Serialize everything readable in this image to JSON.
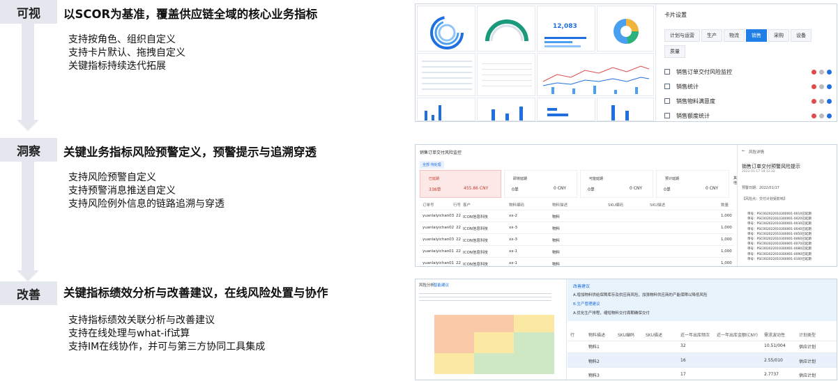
{
  "stages": [
    {
      "tag": "可视",
      "title": "以SCOR为基准，覆盖供应链全域的核心业务指标",
      "bullets": [
        "支持按角色、组织自定义",
        "支持卡片默认、拖拽自定义",
        "关键指标持续迭代拓展"
      ]
    },
    {
      "tag": "洞察",
      "title": "关键业务指标风险预警定义，预警提示与追溯穿透",
      "bullets": [
        "支持风险预警自定义",
        "支持预警消息推送自定义",
        "支持风险例外信息的链路追溯与穿透"
      ]
    },
    {
      "tag": "改善",
      "title": "关键指标绩效分析与改善建议，在线风险处置与协作",
      "bullets": [
        "支持指标绩效关联分析与改善建议",
        "支持在线处理与what-if试算",
        "支持IM在线协作，并可与第三方协同工具集成"
      ]
    }
  ],
  "shot1": {
    "settings_title": "卡片设置",
    "chips": [
      "计划与运营",
      "生产",
      "物流",
      "销售",
      "采购",
      "设备",
      "质量"
    ],
    "active_chip": "销售",
    "rows": [
      "销售订单交付风险监控",
      "销售统计",
      "销售物料满意度",
      "销售额度统计"
    ],
    "big_number": "12,083"
  },
  "shot2": {
    "header": "销售订单交付风险监控",
    "tab": "全部  待处理",
    "metrics": [
      {
        "label": "已延期",
        "count": "338单",
        "amount": "455.86 CNY"
      },
      {
        "label": "即将延期",
        "count": "0单",
        "amount": "0 CNY"
      },
      {
        "label": "可能延期",
        "count": "0单",
        "amount": "0 CNY"
      },
      {
        "label": "预计延期",
        "count": "0单",
        "amount": "0 CNY"
      },
      {
        "label": "其他",
        "count": "",
        "amount": ""
      }
    ],
    "columns": [
      "订单号",
      "行号",
      "客户",
      "物料编码",
      "物料描述",
      "SKU编码",
      "SKU描述",
      "数量"
    ],
    "rows": [
      [
        "yuanlaiyichan03",
        "22",
        "ICON信息科技",
        "xx-2",
        "物料",
        "1,000"
      ],
      [
        "yuanlaiyichan02",
        "22",
        "ICON信息科技",
        "xx-3",
        "物料",
        "1,000"
      ],
      [
        "yuanlaiyichan03",
        "22",
        "ICON信息科技",
        "xx-3",
        "物料",
        "1,000"
      ],
      [
        "yuanlaiyichan01",
        "22",
        "ICON信息科技",
        "xx-1",
        "物料",
        "1,000"
      ],
      [
        "yuanlaiyichan01",
        "22",
        "ICON信息科技",
        "xx-1",
        "物料",
        "1,000"
      ]
    ],
    "detail_header": "风险详情",
    "detail_title": "销售订单交付预警风险提示",
    "detail_date": "2022-01-17 18:12:22",
    "detail_line": "预警日期：2022/01/17",
    "detail_sub": "【风险点：交付计划受影响】",
    "detail_list": [
      "单号：PSC002022010300001-0010已延期",
      "单号：PSC002022010300001-0020已延期",
      "单号：PSC002022010300001-0030已延期",
      "单号：PSC002022010300001-0040已延期",
      "单号：PSC002022010300001-0050已延期",
      "单号：PSC002022010300001-0060已延期",
      "单号：PSC002022010300001-0070已延期",
      "单号：PSC002022010300001-0080已延期",
      "单号：PSC002022010300001-0090已延期",
      "单号：PSC002022010300001-0100已延期"
    ]
  },
  "shot3": {
    "tabs": [
      "风险分析",
      "智能建议"
    ],
    "advice_title": "改善建议",
    "advice_1": "A.增加物料供给保障库存及供应商风险，加强物料供应商的产能保障以降低风险",
    "advice_sub": "B.生产管理建议",
    "advice_2": "A.优化生产排程，缩短物料交付周期确保交付",
    "columns": [
      "行",
      "物料描述",
      "SKU编码",
      "SKU描述",
      "近一年出库频次",
      "近一年出库金额(CNY)",
      "需求波动性",
      "计划类型"
    ],
    "rows": [
      [
        "物料1",
        "32",
        "10.51/004",
        "供应计划"
      ],
      [
        "物料2",
        "16",
        "2.55/010",
        "供应计划"
      ],
      [
        "物料3",
        "17",
        "2.7737",
        "供应计划"
      ]
    ],
    "colors": {
      "red": "#f9c9a8",
      "yellow": "#fbe9a3",
      "green": "#cfe8c4"
    }
  }
}
